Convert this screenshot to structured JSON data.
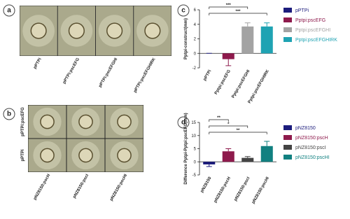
{
  "photo_panels": {
    "a": {
      "letter": "a",
      "bottom_labels": [
        "pPTPi",
        "pPTPi:pscEFG",
        "pPTPi:pscEFGHI",
        "pPTPi:pscEFGHIRK"
      ]
    },
    "b": {
      "letter": "b",
      "left_labels": [
        "pPTPi:pscEFG",
        "pPTPi"
      ],
      "bottom_labels": [
        "pNZ8150:pscH",
        "pNZ8150:pscI",
        "pNZ8150:pscHI"
      ]
    }
  },
  "chart_data": [
    {
      "type": "bar",
      "letter": "c",
      "y_label": "Pptpi-construct(mm)",
      "categories": [
        "pPTPi",
        "Pptpi:pscEFG",
        "Pptpi:pscEFGHI",
        "Pptpi:pscEFGHIRK"
      ],
      "values": [
        0,
        -0.8,
        3.7,
        3.7
      ],
      "errors": [
        0,
        0.9,
        0.5,
        0.5
      ],
      "colors": [
        "#1c1c7c",
        "#8e1a4c",
        "#a3a3a3",
        "#1fa3b3"
      ],
      "ylim": [
        -2,
        6
      ],
      "yticks": [
        -2,
        0,
        2,
        4,
        6
      ],
      "significance": [
        {
          "from": 0,
          "to": 2,
          "label": "***"
        },
        {
          "from": 0,
          "to": 3,
          "label": "***"
        }
      ]
    },
    {
      "type": "bar",
      "letter": "d",
      "y_label": "Difference Pptpi-Pptpi:pscEFG(mm)",
      "categories": [
        "pNZ8150",
        "pNZ8150:pscH",
        "pNZ8150:pscI",
        "pNZ8150:pscHI"
      ],
      "values": [
        -1,
        4,
        1.5,
        6
      ],
      "errors": [
        0.8,
        1,
        0.5,
        1.8
      ],
      "colors": [
        "#1c1c7c",
        "#8e1a4c",
        "#444444",
        "#118080"
      ],
      "ylim": [
        -5,
        15
      ],
      "yticks": [
        -5,
        0,
        5,
        10,
        15
      ],
      "significance": [
        {
          "from": 0,
          "to": 1,
          "label": "**"
        },
        {
          "from": 0,
          "to": 2,
          "label": "*"
        },
        {
          "from": 0,
          "to": 3,
          "label": "**"
        }
      ]
    }
  ]
}
